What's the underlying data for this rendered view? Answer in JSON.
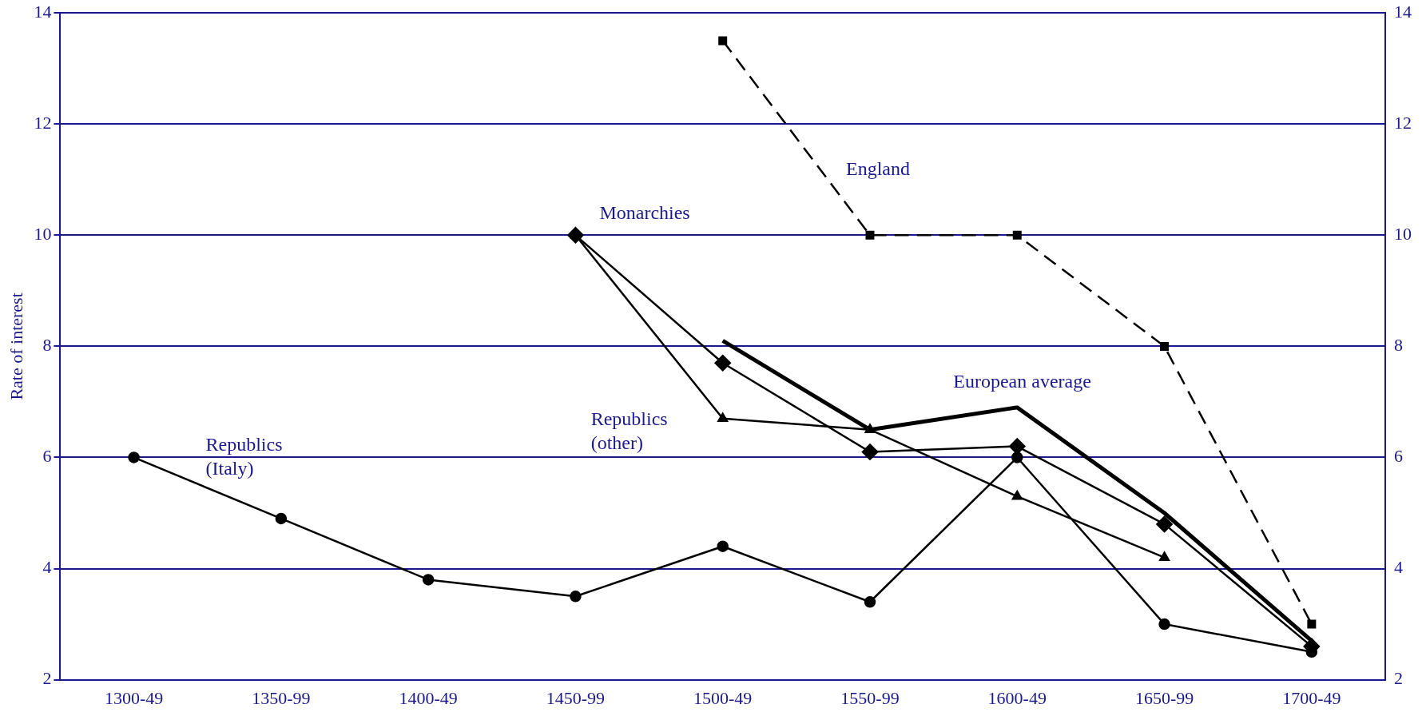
{
  "chart_data": {
    "type": "line",
    "ylabel": "Rate of interest",
    "categories": [
      "1300-49",
      "1350-99",
      "1400-49",
      "1450-99",
      "1500-49",
      "1550-99",
      "1600-49",
      "1650-99",
      "1700-49"
    ],
    "series": [
      {
        "name": "Republics (Italy)",
        "color": "#000000",
        "marker": "circle",
        "values": [
          6,
          4.9,
          3.8,
          3.5,
          4.4,
          3.4,
          6.0,
          3.0,
          2.5
        ]
      },
      {
        "name": "Republics (other)",
        "color": "#000000",
        "marker": "triangle",
        "values": [
          null,
          null,
          null,
          10,
          6.7,
          6.5,
          5.3,
          4.2,
          null
        ]
      },
      {
        "name": "Monarchies",
        "color": "#000000",
        "marker": "diamond",
        "values": [
          null,
          null,
          null,
          10,
          7.7,
          6.1,
          6.2,
          4.8,
          2.6
        ]
      },
      {
        "name": "European average",
        "color": "#000000",
        "marker": "none",
        "values": [
          null,
          null,
          null,
          null,
          8.1,
          6.5,
          6.9,
          5.0,
          2.7
        ]
      },
      {
        "name": "England",
        "color": "#000000",
        "marker": "square",
        "line_style": "dashed",
        "values": [
          null,
          null,
          null,
          null,
          13.5,
          10,
          10,
          8,
          3.0
        ]
      }
    ],
    "ylim": [
      2,
      14
    ],
    "yticks": [
      2,
      4,
      6,
      8,
      10,
      12,
      14
    ],
    "y2lim": [
      2,
      14
    ],
    "y2ticks": [
      2,
      4,
      6,
      8,
      10,
      12,
      14
    ],
    "grid": "y"
  }
}
